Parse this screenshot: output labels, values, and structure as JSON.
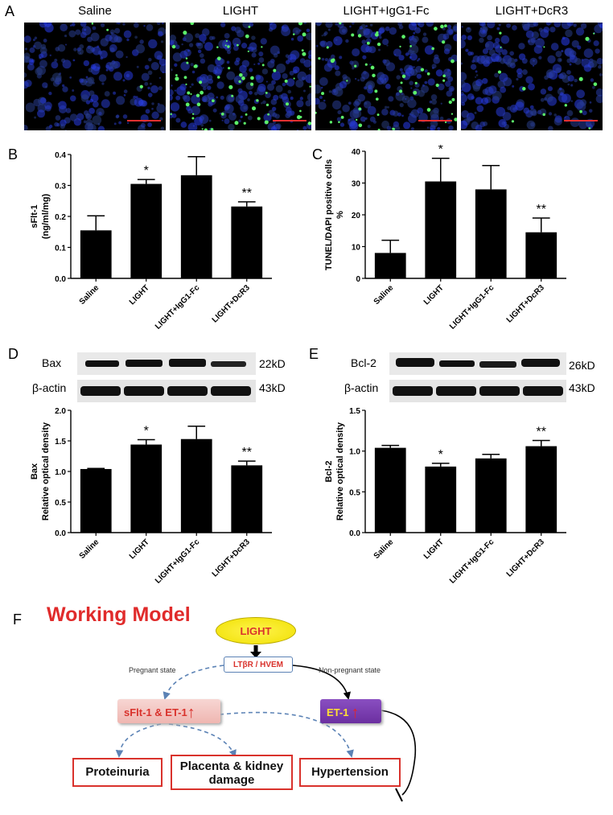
{
  "panels": {
    "a": "A",
    "b": "B",
    "c": "C",
    "d": "D",
    "e": "E",
    "f": "F"
  },
  "micrographs": [
    "Saline",
    "LIGHT",
    "LIGHT+IgG1-Fc",
    "LIGHT+DcR3"
  ],
  "blot_d": {
    "row1_label": "Bax",
    "row1_kd": "22kD",
    "row2_label": "β-actin",
    "row2_kd": "43kD"
  },
  "blot_e": {
    "row1_label": "Bcl-2",
    "row1_kd": "26kD",
    "row2_label": "β-actin",
    "row2_kd": "43kD"
  },
  "model": {
    "title": "Working Model",
    "light": "LIGHT",
    "receptor": "LTβR / HVEM",
    "pregnant": "Pregnant state",
    "nonpregnant": "Non-pregnant state",
    "sflt": "sFlt-1 & ET-1",
    "et1": "ET-1",
    "up_arrow": "↑",
    "proteinuria": "Proteinuria",
    "damage_l1": "Placenta & kidney",
    "damage_l2": "damage",
    "hypertension": "Hypertension"
  },
  "chart_data": [
    {
      "type": "bar",
      "panel": "B",
      "categories": [
        "Saline",
        "LIGHT",
        "LIGHT+IgG1-Fc",
        "LIGHT+DcR3"
      ],
      "values": [
        0.155,
        0.305,
        0.333,
        0.232
      ],
      "errors": [
        0.047,
        0.014,
        0.06,
        0.015
      ],
      "annotations": [
        "",
        "*",
        "",
        "**"
      ],
      "ylabel": [
        "sFlt-1",
        "(ng/ml/mg)"
      ],
      "ylim": [
        0,
        0.4
      ],
      "yticks": [
        0.0,
        0.1,
        0.2,
        0.3,
        0.4
      ],
      "ytick_labels": [
        "0.0",
        "0.1",
        "0.2",
        "0.3",
        "0.4"
      ]
    },
    {
      "type": "bar",
      "panel": "C",
      "categories": [
        "Saline",
        "LIGHT",
        "LIGHT+IgG1-Fc",
        "LIGHT+DcR3"
      ],
      "values": [
        8.0,
        30.5,
        28.0,
        14.5
      ],
      "errors": [
        4.0,
        7.3,
        7.5,
        4.5
      ],
      "annotations": [
        "",
        "*",
        "",
        "**"
      ],
      "ylabel": [
        "TUNEL/DAPI positive cells",
        "%"
      ],
      "ylim": [
        0,
        40
      ],
      "yticks": [
        0,
        10,
        20,
        30,
        40
      ],
      "ytick_labels": [
        "0",
        "10",
        "20",
        "30",
        "40"
      ]
    },
    {
      "type": "bar",
      "panel": "D",
      "categories": [
        "Saline",
        "LIGHT",
        "LIGHT+IgG1-Fc",
        "LIGHT+DcR3"
      ],
      "values": [
        1.04,
        1.44,
        1.53,
        1.1
      ],
      "errors": [
        0.01,
        0.08,
        0.21,
        0.07
      ],
      "annotations": [
        "",
        "*",
        "",
        "**"
      ],
      "ylabel": [
        "Bax",
        "Relative optical density"
      ],
      "ylim": [
        0,
        2.0
      ],
      "yticks": [
        0.0,
        0.5,
        1.0,
        1.5,
        2.0
      ],
      "ytick_labels": [
        "0.0",
        "0.5",
        "1.0",
        "1.5",
        "2.0"
      ]
    },
    {
      "type": "bar",
      "panel": "E",
      "categories": [
        "Saline",
        "LIGHT",
        "LIGHT+IgG1-Fc",
        "LIGHT+DcR3"
      ],
      "values": [
        1.04,
        0.81,
        0.91,
        1.06
      ],
      "errors": [
        0.03,
        0.04,
        0.05,
        0.07
      ],
      "annotations": [
        "",
        "*",
        "",
        "**"
      ],
      "ylabel": [
        "Bcl-2",
        "Relative optical density"
      ],
      "ylim": [
        0,
        1.5
      ],
      "yticks": [
        0.0,
        0.5,
        1.0,
        1.5
      ],
      "ytick_labels": [
        "0.0",
        "0.5",
        "1.0",
        "1.5"
      ]
    }
  ]
}
